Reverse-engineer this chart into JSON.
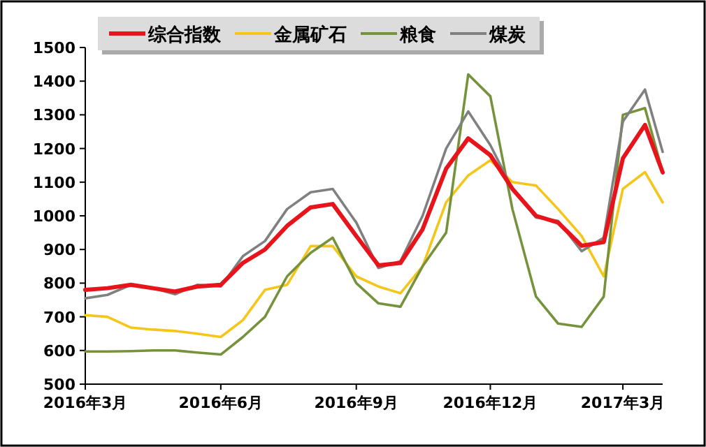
{
  "chart_data": {
    "type": "line",
    "legend": "top",
    "ylim": [
      500,
      1500
    ],
    "yticks": [
      500,
      600,
      700,
      800,
      900,
      1000,
      1100,
      1200,
      1300,
      1400,
      1500
    ],
    "xlim": [
      "2016-03-01",
      "2017-03-28"
    ],
    "xticks": [
      {
        "value": "2016-03-01",
        "label": "2016年3月"
      },
      {
        "value": "2016-06-01",
        "label": "2016年6月"
      },
      {
        "value": "2016-09-01",
        "label": "2016年9月"
      },
      {
        "value": "2016-12-01",
        "label": "2016年12月"
      },
      {
        "value": "2017-03-01",
        "label": "2017年3月"
      }
    ],
    "x": [
      "2016-03-01",
      "2016-03-16",
      "2016-04-01",
      "2016-04-16",
      "2016-05-01",
      "2016-05-16",
      "2016-06-01",
      "2016-06-16",
      "2016-07-01",
      "2016-07-16",
      "2016-08-01",
      "2016-08-16",
      "2016-09-01",
      "2016-09-16",
      "2016-10-01",
      "2016-10-16",
      "2016-11-01",
      "2016-11-16",
      "2016-12-01",
      "2016-12-16",
      "2017-01-01",
      "2017-01-16",
      "2017-02-01",
      "2017-02-16",
      "2017-03-01",
      "2017-03-16",
      "2017-03-28"
    ],
    "series": [
      {
        "name": "综合指数",
        "color": "#e8141b",
        "values": [
          780,
          785,
          795,
          785,
          775,
          790,
          795,
          860,
          900,
          970,
          1025,
          1035,
          940,
          853,
          860,
          960,
          1140,
          1230,
          1180,
          1080,
          1000,
          980,
          911,
          922,
          1171,
          1270,
          1129
        ]
      },
      {
        "name": "金属矿石",
        "color": "#f5c518",
        "values": [
          705,
          700,
          668,
          662,
          658,
          650,
          640,
          690,
          780,
          795,
          910,
          910,
          820,
          790,
          770,
          850,
          1040,
          1120,
          1165,
          1100,
          1090,
          1020,
          940,
          820,
          1080,
          1130,
          1040
        ]
      },
      {
        "name": "粮食",
        "color": "#76923c",
        "values": [
          597,
          597,
          598,
          600,
          600,
          594,
          588,
          640,
          700,
          820,
          890,
          935,
          800,
          740,
          730,
          850,
          950,
          1420,
          1355,
          1020,
          760,
          680,
          670,
          760,
          1300,
          1320,
          1130
        ]
      },
      {
        "name": "煤炭",
        "color": "#808080",
        "values": [
          755,
          765,
          795,
          785,
          767,
          795,
          790,
          880,
          925,
          1020,
          1070,
          1080,
          980,
          845,
          865,
          1000,
          1200,
          1310,
          1210,
          1080,
          995,
          985,
          895,
          935,
          1280,
          1375,
          1190
        ]
      }
    ]
  }
}
